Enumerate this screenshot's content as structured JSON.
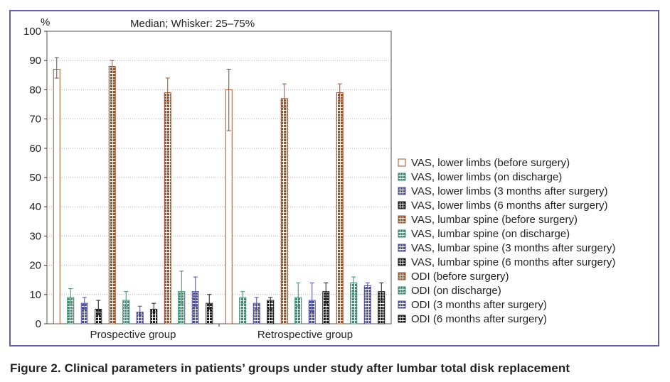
{
  "colors": {
    "frame": "#6a5ba6",
    "brown": "#a0522d",
    "green": "#3a8d6e",
    "blue": "#4a4e9c",
    "black": "#1a1a1a",
    "white_fill": "#ffffff"
  },
  "caption": "Figure 2. Clinical parameters in patients’ groups under study after lumbar total disk replacement",
  "chart_data": {
    "type": "bar",
    "title": "Median; Whisker: 25–75%",
    "ylabel": "%",
    "xlabel": "",
    "ylim": [
      0,
      100
    ],
    "yticks": [
      0,
      10,
      20,
      30,
      40,
      50,
      60,
      70,
      80,
      90,
      100
    ],
    "grid": true,
    "legend_position": "right",
    "categories": [
      "Prospective group",
      "Retrospective group"
    ],
    "series": [
      {
        "name": "VAS, lower limbs (before surgery)",
        "color": "#ffffff",
        "pattern": "hollow",
        "values": [
          87,
          80
        ],
        "q25": [
          84,
          66
        ],
        "q75": [
          91,
          87
        ]
      },
      {
        "name": "VAS, lower limbs (on discharge)",
        "color": "#3a8d6e",
        "pattern": "grid",
        "values": [
          9,
          9
        ],
        "q25": [
          7,
          7
        ],
        "q75": [
          12,
          11
        ]
      },
      {
        "name": "VAS, lower limbs (3 months after surgery)",
        "color": "#4a4e9c",
        "pattern": "grid",
        "values": [
          7,
          7
        ],
        "q25": [
          5,
          5
        ],
        "q75": [
          9,
          9
        ]
      },
      {
        "name": "VAS, lower limbs (6 months after surgery)",
        "color": "#1a1a1a",
        "pattern": "grid",
        "values": [
          5,
          8
        ],
        "q25": [
          3,
          5
        ],
        "q75": [
          8,
          9
        ]
      },
      {
        "name": "VAS, lumbar spine (before surgery)",
        "color": "#a0522d",
        "pattern": "grid",
        "values": [
          88,
          77
        ],
        "q25": [
          86,
          74
        ],
        "q75": [
          90,
          82
        ]
      },
      {
        "name": "VAS, lumbar spine (on discharge)",
        "color": "#3a8d6e",
        "pattern": "grid",
        "values": [
          8,
          9
        ],
        "q25": [
          6,
          6
        ],
        "q75": [
          11,
          14
        ]
      },
      {
        "name": "VAS, lumbar spine (3 months after surgery)",
        "color": "#4a4e9c",
        "pattern": "grid",
        "values": [
          4,
          8
        ],
        "q25": [
          3,
          4
        ],
        "q75": [
          6,
          14
        ]
      },
      {
        "name": "VAS, lumbar spine (6 months after surgery)",
        "color": "#1a1a1a",
        "pattern": "grid",
        "values": [
          5,
          11
        ],
        "q25": [
          4,
          7
        ],
        "q75": [
          7,
          14
        ]
      },
      {
        "name": "ODI (before surgery)",
        "color": "#a0522d",
        "pattern": "grid",
        "values": [
          79,
          79
        ],
        "q25": [
          76,
          76
        ],
        "q75": [
          84,
          82
        ]
      },
      {
        "name": "ODI (on discharge)",
        "color": "#3a8d6e",
        "pattern": "grid",
        "values": [
          11,
          14
        ],
        "q25": [
          7,
          10
        ],
        "q75": [
          18,
          16
        ]
      },
      {
        "name": "ODI (3 months after surgery)",
        "color": "#4a4e9c",
        "pattern": "grid",
        "values": [
          11,
          13
        ],
        "q25": [
          6,
          12
        ],
        "q75": [
          16,
          14
        ]
      },
      {
        "name": "ODI (6 months after surgery)",
        "color": "#1a1a1a",
        "pattern": "grid",
        "values": [
          7,
          11
        ],
        "q25": [
          5,
          8
        ],
        "q75": [
          10,
          14
        ]
      }
    ]
  }
}
